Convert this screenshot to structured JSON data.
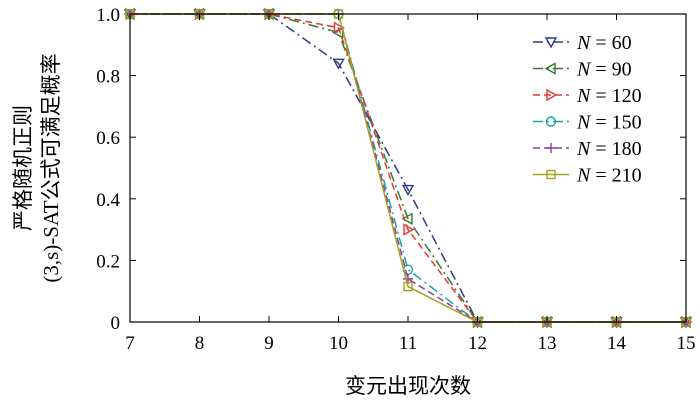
{
  "chart_data": {
    "type": "line",
    "xlabel": "变元出现次数",
    "ylabel_line1": "严格随机正则",
    "ylabel_line2": "(3,s)-SAT公式可满足概率",
    "xlim": [
      7,
      15
    ],
    "ylim": [
      0,
      1.0
    ],
    "x_ticks": [
      "7",
      "8",
      "9",
      "10",
      "11",
      "12",
      "13",
      "14",
      "15"
    ],
    "y_ticks": [
      "0",
      "0.2",
      "0.4",
      "0.6",
      "0.8",
      "1.0"
    ],
    "x": [
      7,
      8,
      9,
      10,
      11,
      12,
      13,
      14,
      15
    ],
    "legend_position": "top-right",
    "grid": false,
    "series": [
      {
        "name": "N = 60",
        "color": "#2b3a8c",
        "dash": "dashdot",
        "marker": "triangle-down",
        "values": [
          1.0,
          1.0,
          1.0,
          0.84,
          0.43,
          0.0,
          0.0,
          0.0,
          0.0
        ]
      },
      {
        "name": "N = 90",
        "color": "#2e7d32",
        "dash": "dashdot",
        "marker": "triangle-left",
        "values": [
          1.0,
          1.0,
          1.0,
          0.94,
          0.335,
          0.0,
          0.0,
          0.0,
          0.0
        ]
      },
      {
        "name": "N = 120",
        "color": "#e53935",
        "dash": "dashed",
        "marker": "triangle-right",
        "values": [
          1.0,
          1.0,
          1.0,
          0.955,
          0.3,
          0.0,
          0.0,
          0.0,
          0.0
        ]
      },
      {
        "name": "N = 150",
        "color": "#1fa3a3",
        "dash": "dashdot",
        "marker": "circle",
        "values": [
          1.0,
          1.0,
          1.0,
          1.0,
          0.17,
          0.0,
          0.0,
          0.0,
          0.0
        ]
      },
      {
        "name": "N = 180",
        "color": "#8e3d9e",
        "dash": "dashed",
        "marker": "plus",
        "values": [
          1.0,
          1.0,
          1.0,
          1.0,
          0.14,
          0.0,
          0.0,
          0.0,
          0.0
        ]
      },
      {
        "name": "N = 210",
        "color": "#a8a020",
        "dash": "solid",
        "marker": "square",
        "values": [
          1.0,
          1.0,
          1.0,
          1.0,
          0.115,
          0.0,
          0.0,
          0.0,
          0.0
        ]
      }
    ]
  }
}
